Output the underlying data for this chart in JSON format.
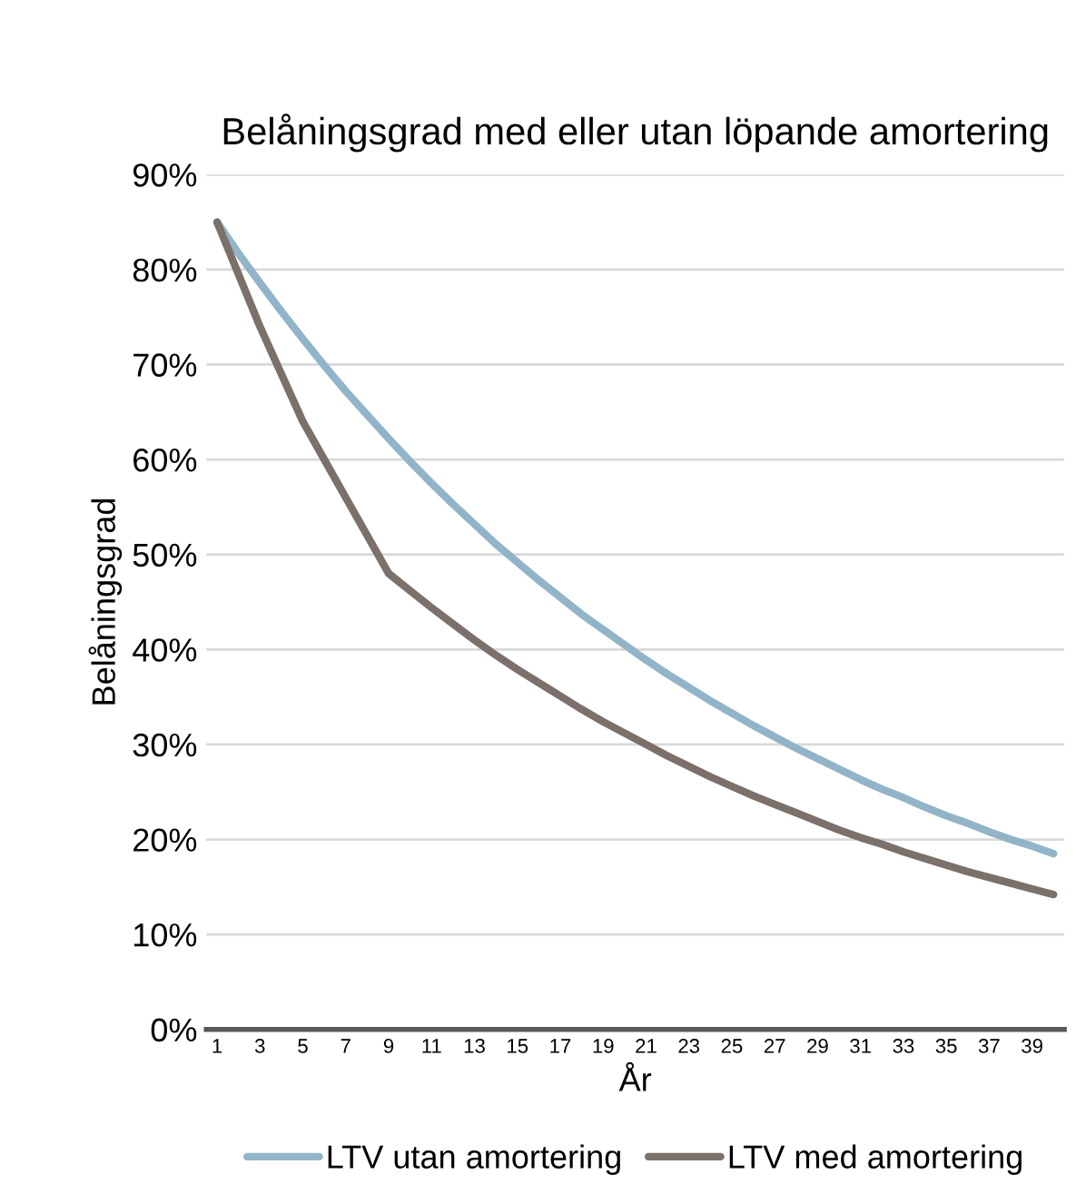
{
  "chart_data": {
    "type": "line",
    "title": "Belåningsgrad med eller utan löpande amortering",
    "xlabel": "År",
    "ylabel": "Belåningsgrad",
    "categories": [
      "1",
      null,
      "3",
      null,
      "5",
      null,
      "7",
      null,
      "9",
      null,
      "11",
      null,
      "13",
      null,
      "15",
      null,
      "17",
      null,
      "19",
      null,
      "21",
      null,
      "23",
      null,
      "25",
      null,
      "27",
      null,
      "29",
      null,
      "31",
      null,
      "33",
      null,
      "35",
      null,
      "37",
      null,
      "39",
      null
    ],
    "series": [
      {
        "name": "LTV utan amortering",
        "color": "#92b4c9",
        "values": [
          85.0,
          81.7,
          78.6,
          75.6,
          72.7,
          69.9,
          67.2,
          64.7,
          62.2,
          59.8,
          57.5,
          55.3,
          53.2,
          51.1,
          49.2,
          47.3,
          45.5,
          43.7,
          42.1,
          40.5,
          38.9,
          37.4,
          36.0,
          34.6,
          33.3,
          32.0,
          30.8,
          29.6,
          28.5,
          27.4,
          26.3,
          25.3,
          24.4,
          23.4,
          22.5,
          21.7,
          20.8,
          20.0,
          19.3,
          18.5
        ]
      },
      {
        "name": "LTV med amortering",
        "color": "#7b706a",
        "values": [
          85.0,
          79.5,
          74.0,
          69.0,
          64.0,
          60.0,
          56.0,
          52.0,
          48.0,
          46.2,
          44.4,
          42.7,
          41.0,
          39.4,
          37.9,
          36.5,
          35.1,
          33.7,
          32.4,
          31.2,
          30.0,
          28.8,
          27.7,
          26.6,
          25.6,
          24.6,
          23.7,
          22.8,
          21.9,
          21.0,
          20.2,
          19.5,
          18.7,
          18.0,
          17.3,
          16.6,
          16.0,
          15.4,
          14.8,
          14.2
        ]
      }
    ],
    "ylim": [
      0,
      90
    ],
    "yticks": [
      {
        "value": 0,
        "label": "0%"
      },
      {
        "value": 10,
        "label": "10%"
      },
      {
        "value": 20,
        "label": "20%"
      },
      {
        "value": 30,
        "label": "30%"
      },
      {
        "value": 40,
        "label": "40%"
      },
      {
        "value": 50,
        "label": "50%"
      },
      {
        "value": 60,
        "label": "60%"
      },
      {
        "value": 70,
        "label": "70%"
      },
      {
        "value": 80,
        "label": "80%"
      },
      {
        "value": 90,
        "label": "90%"
      }
    ],
    "grid": "y",
    "legend": "bottom",
    "marker": "none",
    "line_style": "solid"
  }
}
